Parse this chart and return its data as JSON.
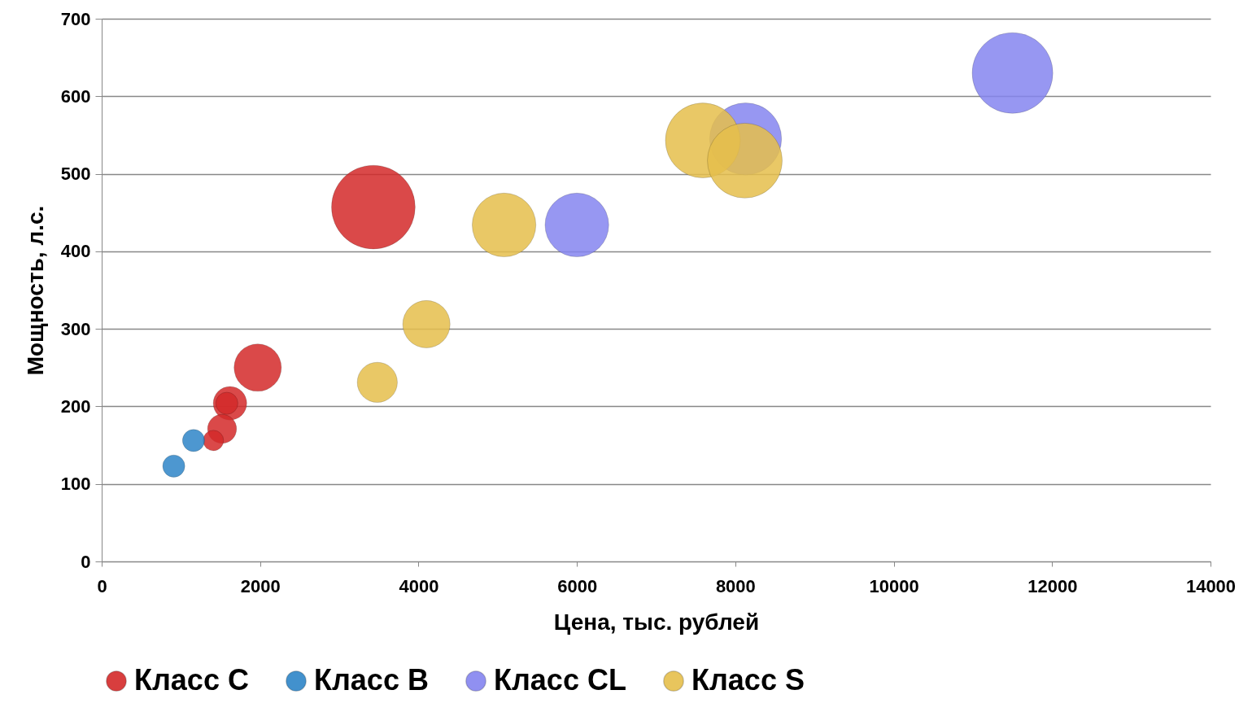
{
  "chart_data": {
    "type": "bubble",
    "xlabel": "Цена, тыс. рублей",
    "ylabel": "Мощность, л.с.",
    "xlim": [
      0,
      14000
    ],
    "xticks": [
      0,
      2000,
      4000,
      6000,
      8000,
      10000,
      12000,
      14000
    ],
    "ylim": [
      0,
      700
    ],
    "yticks": [
      0,
      100,
      200,
      300,
      400,
      500,
      600,
      700
    ],
    "grid": "y",
    "legend": "bottom",
    "series": [
      {
        "name": "Класс C",
        "color": "#d42a2a",
        "x": [
          3430,
          1970,
          1620,
          1580,
          1520,
          1410
        ],
        "values": [
          457,
          250,
          204,
          204,
          171,
          156
        ],
        "sizes": [
          1,
          0.32,
          0.16,
          0.07,
          0.12,
          0.06
        ]
      },
      {
        "name": "Класс B",
        "color": "#2e86c8",
        "x": [
          910,
          1160
        ],
        "values": [
          123,
          156
        ],
        "sizes": [
          0.07,
          0.07
        ]
      },
      {
        "name": "Класс CL",
        "color": "#8585f0",
        "x": [
          11500,
          6000,
          8130
        ],
        "values": [
          630,
          434,
          545
        ],
        "sizes": [
          0.93,
          0.58,
          0.74
        ]
      },
      {
        "name": "Класс S",
        "color": "#e6bf4c",
        "x": [
          5080,
          4100,
          3480,
          7590,
          8120
        ],
        "values": [
          434,
          306,
          231,
          543,
          517
        ],
        "sizes": [
          0.58,
          0.32,
          0.23,
          0.8,
          0.8
        ]
      }
    ]
  }
}
